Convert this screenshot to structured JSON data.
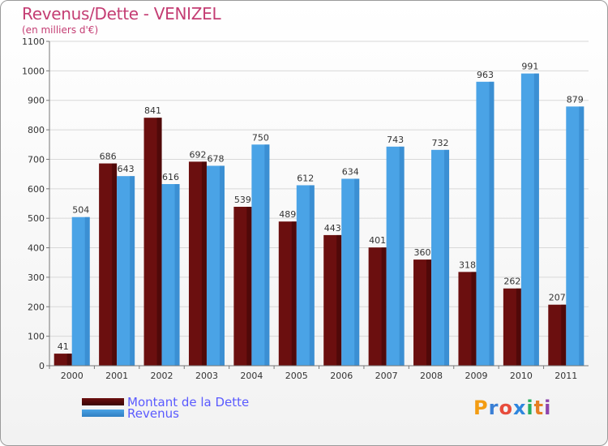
{
  "chart_data": {
    "type": "bar",
    "title": "Revenus/Dette - VENIZEL",
    "subtitle": "(en milliers d'€)",
    "categories": [
      "2000",
      "2001",
      "2002",
      "2003",
      "2004",
      "2005",
      "2006",
      "2007",
      "2008",
      "2009",
      "2010",
      "2011"
    ],
    "series": [
      {
        "name": "Montant de la Dette",
        "color": "#6b0f0f",
        "values": [
          41,
          686,
          841,
          692,
          539,
          489,
          443,
          401,
          360,
          318,
          262,
          207
        ]
      },
      {
        "name": "Revenus",
        "color": "#4aa3e6",
        "values": [
          504,
          643,
          616,
          678,
          750,
          612,
          634,
          743,
          732,
          963,
          991,
          879
        ]
      }
    ],
    "yticks": [
      0,
      100,
      200,
      300,
      400,
      500,
      600,
      700,
      800,
      900,
      1000,
      1100
    ],
    "ylim": [
      0,
      1100
    ],
    "grid": true,
    "legend": "bottom-left"
  },
  "logo": {
    "letters": [
      "P",
      "r",
      "o",
      "x",
      "i",
      "t",
      "i"
    ],
    "colors": [
      "#f39c12",
      "#3a7fd5",
      "#e74c3c",
      "#2e86de",
      "#27ae60",
      "#e67e22",
      "#8e44ad"
    ]
  }
}
